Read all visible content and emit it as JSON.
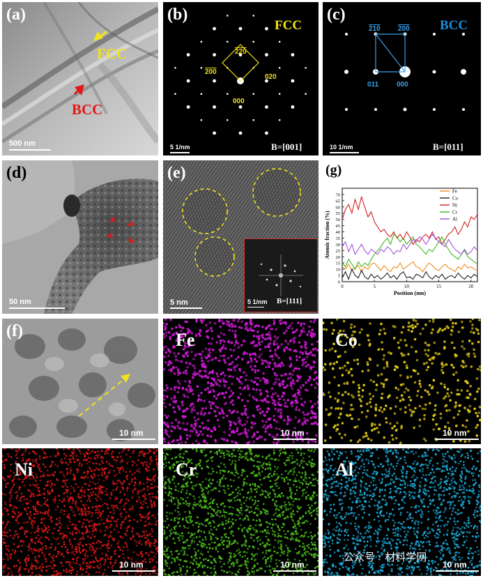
{
  "panels": {
    "a": {
      "label": "(a)",
      "fcc": "FCC",
      "bcc": "BCC",
      "scale": "500 nm"
    },
    "b": {
      "label": "(b)",
      "phase": "FCC",
      "spots": [
        "220",
        "200",
        "020",
        "000"
      ],
      "scale": "5 1/nm",
      "zone": "B=[001]"
    },
    "c": {
      "label": "(c)",
      "phase": "BCC",
      "spots": [
        "210",
        "200",
        "011",
        "000"
      ],
      "scale": "10 1/nm",
      "zone": "B=[011]"
    },
    "d": {
      "label": "(d)",
      "scale": "50 nm"
    },
    "e": {
      "label": "(e)",
      "scale": "5 nm",
      "inset_scale": "5 1/nm",
      "inset_zone": "B=[111]"
    },
    "f": {
      "label": "(f)",
      "scale": "10 nm"
    }
  },
  "maps": [
    {
      "element": "Fe",
      "scale": "10 nm",
      "color": "#d21ad8"
    },
    {
      "element": "Co",
      "scale": "10 nm",
      "color": "#e8d01a"
    },
    {
      "element": "Ni",
      "scale": "10 nm",
      "color": "#e01818"
    },
    {
      "element": "Cr",
      "scale": "10 nm",
      "color": "#4cc41a"
    },
    {
      "element": "Al",
      "scale": "10 nm",
      "color": "#1ab0e0"
    }
  ],
  "watermark": "公众号 · 材料学网",
  "chart_data": {
    "type": "line",
    "panel_label": "(g)",
    "xlabel": "Position (nm)",
    "ylabel": "Atomic fraction (%)",
    "xlim": [
      0,
      21
    ],
    "ylim": [
      0,
      75
    ],
    "xticks": [
      0,
      5,
      10,
      15,
      20
    ],
    "yticks": [
      0,
      5,
      10,
      15,
      20,
      25,
      30,
      35,
      40,
      45,
      50,
      55,
      60,
      65,
      70
    ],
    "legend_position": "top-right",
    "x": [
      0,
      0.5,
      1,
      1.5,
      2,
      2.5,
      3,
      3.5,
      4,
      4.5,
      5,
      5.5,
      6,
      6.5,
      7,
      7.5,
      8,
      8.5,
      9,
      9.5,
      10,
      10.5,
      11,
      11.5,
      12,
      12.5,
      13,
      13.5,
      14,
      14.5,
      15,
      15.5,
      16,
      16.5,
      17,
      17.5,
      18,
      18.5,
      19,
      19.5,
      20,
      20.5,
      21
    ],
    "series": [
      {
        "name": "Fe",
        "color": "#f28a1a",
        "values": [
          12,
          10,
          14,
          9,
          11,
          13,
          8,
          12,
          10,
          14,
          15,
          12,
          9,
          13,
          10,
          8,
          12,
          11,
          15,
          10,
          12,
          14,
          16,
          12,
          11,
          8,
          12,
          15,
          13,
          10,
          9,
          12,
          14,
          11,
          10,
          8,
          12,
          10,
          14,
          11,
          12,
          10,
          9
        ]
      },
      {
        "name": "Co",
        "color": "#202020",
        "values": [
          3,
          8,
          2,
          10,
          5,
          3,
          9,
          4,
          2,
          6,
          3,
          5,
          2,
          4,
          7,
          3,
          5,
          2,
          6,
          8,
          3,
          4,
          2,
          6,
          5,
          3,
          8,
          4,
          2,
          5,
          3,
          6,
          2,
          4,
          5,
          3,
          7,
          4,
          2,
          5,
          3,
          6,
          4
        ]
      },
      {
        "name": "Ni",
        "color": "#d42020",
        "values": [
          50,
          58,
          62,
          55,
          66,
          58,
          68,
          60,
          52,
          56,
          48,
          44,
          40,
          42,
          38,
          36,
          40,
          35,
          38,
          34,
          40,
          36,
          30,
          34,
          32,
          36,
          38,
          35,
          40,
          34,
          36,
          30,
          34,
          38,
          40,
          44,
          38,
          42,
          48,
          44,
          52,
          50,
          54
        ]
      },
      {
        "name": "Cr",
        "color": "#3cb81e",
        "values": [
          15,
          12,
          18,
          14,
          10,
          16,
          12,
          15,
          13,
          18,
          22,
          25,
          28,
          32,
          35,
          30,
          38,
          36,
          32,
          35,
          30,
          33,
          36,
          30,
          28,
          25,
          22,
          26,
          24,
          28,
          32,
          36,
          30,
          26,
          22,
          20,
          18,
          22,
          25,
          20,
          18,
          16,
          14
        ]
      },
      {
        "name": "Al",
        "color": "#a055d8",
        "values": [
          28,
          32,
          24,
          30,
          22,
          26,
          30,
          25,
          22,
          26,
          24,
          22,
          26,
          24,
          28,
          26,
          22,
          25,
          24,
          30,
          26,
          30,
          34,
          32,
          36,
          34,
          30,
          34,
          38,
          35,
          32,
          30,
          28,
          34,
          30,
          26,
          24,
          22,
          26,
          22,
          24,
          28,
          25
        ]
      }
    ]
  }
}
